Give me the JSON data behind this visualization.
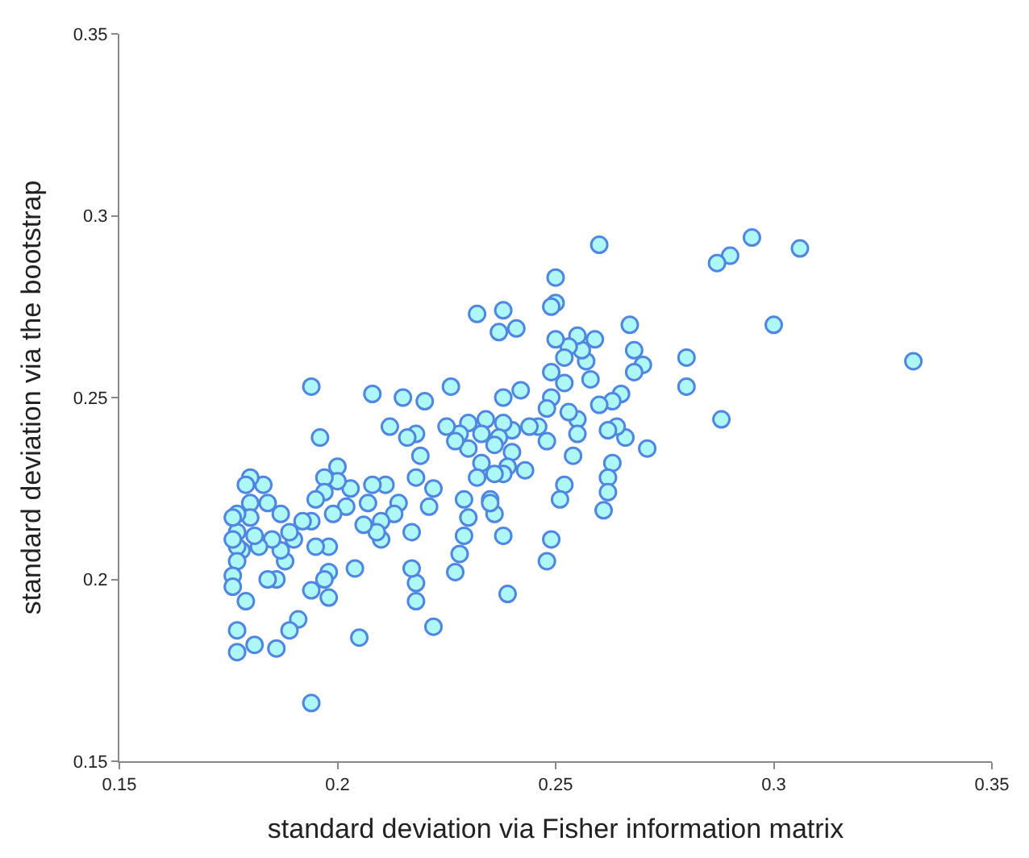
{
  "chart_data": {
    "type": "scatter",
    "xlabel": "standard deviation via Fisher information matrix",
    "ylabel": "standard deviation via the bootstrap",
    "xlim": [
      0.15,
      0.35
    ],
    "ylim": [
      0.15,
      0.35
    ],
    "xticks": [
      0.15,
      0.2,
      0.25,
      0.3,
      0.35
    ],
    "yticks": [
      0.15,
      0.2,
      0.25,
      0.3,
      0.35
    ],
    "marker": "circle",
    "color": "#aef7f7",
    "x": [
      0.332,
      0.306,
      0.3,
      0.295,
      0.29,
      0.287,
      0.288,
      0.28,
      0.28,
      0.26,
      0.271,
      0.27,
      0.268,
      0.268,
      0.267,
      0.266,
      0.265,
      0.263,
      0.264,
      0.263,
      0.262,
      0.262,
      0.261,
      0.262,
      0.26,
      0.259,
      0.258,
      0.257,
      0.256,
      0.255,
      0.255,
      0.255,
      0.254,
      0.253,
      0.252,
      0.252,
      0.253,
      0.252,
      0.251,
      0.25,
      0.25,
      0.249,
      0.25,
      0.249,
      0.249,
      0.248,
      0.246,
      0.248,
      0.249,
      0.248,
      0.244,
      0.243,
      0.242,
      0.241,
      0.24,
      0.24,
      0.239,
      0.238,
      0.238,
      0.238,
      0.238,
      0.237,
      0.237,
      0.236,
      0.236,
      0.235,
      0.234,
      0.233,
      0.233,
      0.232,
      0.232,
      0.238,
      0.239,
      0.236,
      0.235,
      0.23,
      0.23,
      0.229,
      0.23,
      0.229,
      0.228,
      0.227,
      0.228,
      0.227,
      0.226,
      0.225,
      0.222,
      0.221,
      0.22,
      0.222,
      0.219,
      0.218,
      0.218,
      0.217,
      0.216,
      0.215,
      0.214,
      0.213,
      0.212,
      0.218,
      0.218,
      0.217,
      0.211,
      0.21,
      0.21,
      0.209,
      0.208,
      0.208,
      0.207,
      0.206,
      0.205,
      0.204,
      0.203,
      0.202,
      0.2,
      0.2,
      0.199,
      0.198,
      0.198,
      0.198,
      0.197,
      0.197,
      0.197,
      0.196,
      0.195,
      0.195,
      0.194,
      0.194,
      0.194,
      0.194,
      0.192,
      0.191,
      0.19,
      0.189,
      0.189,
      0.188,
      0.187,
      0.187,
      0.186,
      0.186,
      0.185,
      0.184,
      0.183,
      0.182,
      0.181,
      0.18,
      0.18,
      0.18,
      0.179,
      0.179,
      0.178,
      0.177,
      0.177,
      0.177,
      0.177,
      0.176,
      0.176,
      0.177,
      0.177,
      0.176,
      0.181,
      0.184,
      0.176
    ],
    "values": [
      0.26,
      0.291,
      0.27,
      0.294,
      0.289,
      0.287,
      0.244,
      0.261,
      0.253,
      0.292,
      0.236,
      0.259,
      0.257,
      0.263,
      0.27,
      0.239,
      0.251,
      0.249,
      0.242,
      0.232,
      0.228,
      0.224,
      0.219,
      0.241,
      0.248,
      0.266,
      0.255,
      0.26,
      0.263,
      0.267,
      0.244,
      0.24,
      0.234,
      0.264,
      0.261,
      0.254,
      0.246,
      0.226,
      0.222,
      0.276,
      0.283,
      0.275,
      0.266,
      0.257,
      0.25,
      0.247,
      0.242,
      0.238,
      0.211,
      0.205,
      0.242,
      0.23,
      0.252,
      0.269,
      0.241,
      0.235,
      0.231,
      0.229,
      0.243,
      0.25,
      0.274,
      0.268,
      0.239,
      0.237,
      0.229,
      0.222,
      0.244,
      0.24,
      0.232,
      0.228,
      0.273,
      0.212,
      0.196,
      0.218,
      0.221,
      0.243,
      0.236,
      0.222,
      0.217,
      0.212,
      0.207,
      0.202,
      0.24,
      0.238,
      0.253,
      0.242,
      0.225,
      0.22,
      0.249,
      0.187,
      0.234,
      0.24,
      0.228,
      0.213,
      0.239,
      0.25,
      0.221,
      0.218,
      0.242,
      0.199,
      0.194,
      0.203,
      0.226,
      0.216,
      0.211,
      0.213,
      0.251,
      0.226,
      0.221,
      0.215,
      0.184,
      0.203,
      0.225,
      0.22,
      0.231,
      0.227,
      0.218,
      0.209,
      0.202,
      0.195,
      0.228,
      0.224,
      0.2,
      0.239,
      0.222,
      0.209,
      0.253,
      0.216,
      0.197,
      0.166,
      0.216,
      0.189,
      0.211,
      0.213,
      0.186,
      0.205,
      0.208,
      0.218,
      0.181,
      0.2,
      0.211,
      0.221,
      0.226,
      0.209,
      0.212,
      0.228,
      0.221,
      0.217,
      0.226,
      0.194,
      0.208,
      0.218,
      0.213,
      0.209,
      0.205,
      0.201,
      0.198,
      0.186,
      0.18,
      0.217,
      0.182,
      0.2,
      0.211
    ]
  }
}
